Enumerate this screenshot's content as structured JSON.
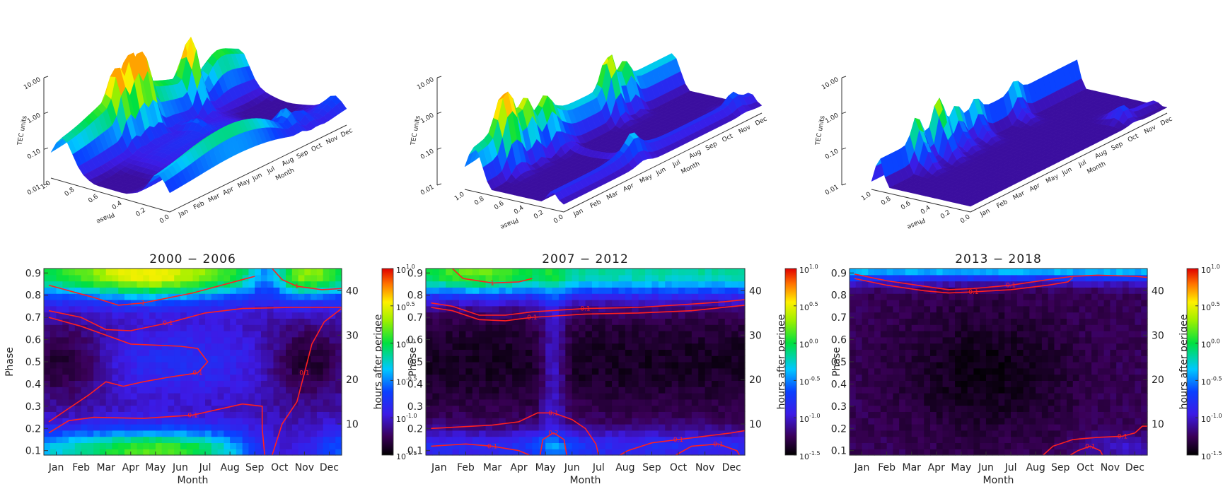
{
  "chart_data": {
    "type": "heatmap",
    "months": [
      "Jan",
      "Feb",
      "Mar",
      "Apr",
      "May",
      "Jun",
      "Jul",
      "Aug",
      "Sep",
      "Oct",
      "Nov",
      "Dec"
    ],
    "phase_ticks": [
      "0.1",
      "0.2",
      "0.3",
      "0.4",
      "0.5",
      "0.6",
      "0.7",
      "0.8",
      "0.9"
    ],
    "hour_ticks": [
      "10",
      "20",
      "30",
      "40"
    ],
    "colorbar_ticks": [
      {
        "base": "10",
        "exp": "1.0"
      },
      {
        "base": "10",
        "exp": "0.5"
      },
      {
        "base": "10",
        "exp": "0.0"
      },
      {
        "base": "10",
        "exp": "-0.5"
      },
      {
        "base": "10",
        "exp": "-1.0"
      },
      {
        "base": "10",
        "exp": "-1.5"
      }
    ],
    "surface_z_ticks": [
      "0.01",
      "0.10",
      "1.00",
      "10.00"
    ],
    "surface_phase_ticks": [
      "0.0",
      "0.2",
      "0.4",
      "0.6",
      "0.8",
      "1.0"
    ],
    "xlabel": "Month",
    "ylabel": "Phase",
    "y2label": "hours after perigee",
    "surface_zlabel": "TEC units",
    "surface_phase_label": "Phase",
    "ranges": {
      "phase": [
        0.08,
        0.92
      ],
      "hours": [
        3,
        45
      ],
      "log_value": [
        -1.5,
        1.0
      ]
    },
    "panels": [
      {
        "title": "2000 − 2006",
        "contours": [
          {
            "label": "1",
            "path": [
              [
                0.2,
                0.845
              ],
              [
                2.0,
                0.79
              ],
              [
                3.0,
                0.755
              ],
              [
                4.0,
                0.765
              ],
              [
                6.0,
                0.81
              ],
              [
                8.0,
                0.87
              ],
              [
                8.5,
                0.885
              ]
            ]
          },
          {
            "label": "1",
            "path": [
              [
                9.2,
                0.92
              ],
              [
                9.6,
                0.87
              ],
              [
                10.2,
                0.84
              ],
              [
                11.2,
                0.825
              ],
              [
                12.0,
                0.83
              ]
            ]
          },
          {
            "label": "0.1",
            "path": [
              [
                0.2,
                0.73
              ],
              [
                1.5,
                0.7
              ],
              [
                2.5,
                0.645
              ],
              [
                3.5,
                0.64
              ],
              [
                5.0,
                0.675
              ],
              [
                6.5,
                0.72
              ],
              [
                8.0,
                0.74
              ],
              [
                10.0,
                0.745
              ],
              [
                12.0,
                0.745
              ]
            ]
          },
          {
            "label": "0.1",
            "path": [
              [
                0.2,
                0.7
              ],
              [
                1.5,
                0.66
              ],
              [
                2.5,
                0.62
              ],
              [
                3.5,
                0.58
              ],
              [
                4.5,
                0.575
              ],
              [
                5.5,
                0.57
              ],
              [
                6.2,
                0.56
              ],
              [
                6.6,
                0.5
              ],
              [
                6.2,
                0.45
              ],
              [
                5.0,
                0.43
              ],
              [
                4.0,
                0.41
              ],
              [
                3.2,
                0.39
              ],
              [
                2.5,
                0.41
              ],
              [
                1.8,
                0.35
              ],
              [
                1.0,
                0.29
              ],
              [
                0.2,
                0.23
              ]
            ]
          },
          {
            "label": "0.1",
            "path": [
              [
                0.2,
                0.18
              ],
              [
                1.0,
                0.235
              ],
              [
                2.0,
                0.25
              ],
              [
                4.0,
                0.245
              ],
              [
                6.0,
                0.26
              ],
              [
                8.0,
                0.31
              ],
              [
                8.8,
                0.3
              ],
              [
                8.8,
                0.2
              ],
              [
                8.9,
                0.08
              ]
            ]
          },
          {
            "label": "0.1",
            "path": [
              [
                12.0,
                0.74
              ],
              [
                11.3,
                0.68
              ],
              [
                10.8,
                0.58
              ],
              [
                10.5,
                0.45
              ],
              [
                10.2,
                0.32
              ],
              [
                9.6,
                0.22
              ],
              [
                9.2,
                0.08
              ]
            ]
          }
        ],
        "surface_peaks": [
          {
            "m": 3.5,
            "p": 0.85,
            "z": 0.9
          },
          {
            "m": 4.4,
            "p": 0.85,
            "z": 1.1
          },
          {
            "m": 5.2,
            "p": 0.85,
            "z": 1.05
          },
          {
            "m": 8.4,
            "p": 0.85,
            "z": 1.4
          },
          {
            "m": 9.0,
            "p": 0.15,
            "z": 0.5
          },
          {
            "m": 10.0,
            "p": 0.15,
            "z": 0.35
          },
          {
            "m": 6.5,
            "p": 0.6,
            "z": 0.3
          }
        ]
      },
      {
        "title": "2007 − 2012",
        "contours": [
          {
            "label": "1",
            "path": [
              [
                1.0,
                0.92
              ],
              [
                1.4,
                0.875
              ],
              [
                2.5,
                0.855
              ],
              [
                3.5,
                0.86
              ],
              [
                4.0,
                0.875
              ]
            ]
          },
          {
            "label": "0.1",
            "path": [
              [
                0.2,
                0.765
              ],
              [
                1.0,
                0.75
              ],
              [
                2.0,
                0.71
              ],
              [
                3.0,
                0.71
              ],
              [
                4.0,
                0.725
              ],
              [
                6.0,
                0.74
              ],
              [
                8.0,
                0.745
              ],
              [
                10.0,
                0.76
              ],
              [
                11.2,
                0.77
              ],
              [
                12.0,
                0.78
              ]
            ]
          },
          {
            "label": "0.1",
            "path": [
              [
                0.2,
                0.745
              ],
              [
                1.0,
                0.73
              ],
              [
                2.0,
                0.69
              ],
              [
                3.0,
                0.685
              ],
              [
                4.0,
                0.7
              ],
              [
                6.0,
                0.715
              ],
              [
                8.0,
                0.72
              ],
              [
                10.0,
                0.73
              ],
              [
                12.0,
                0.755
              ]
            ]
          },
          {
            "label": "0.1",
            "path": [
              [
                0.2,
                0.2
              ],
              [
                1.0,
                0.205
              ],
              [
                2.5,
                0.215
              ],
              [
                3.5,
                0.23
              ],
              [
                4.2,
                0.27
              ],
              [
                4.8,
                0.27
              ],
              [
                5.5,
                0.24
              ],
              [
                6.0,
                0.2
              ],
              [
                6.4,
                0.13
              ],
              [
                6.5,
                0.08
              ]
            ]
          },
          {
            "label": "0.2",
            "path": [
              [
                4.3,
                0.08
              ],
              [
                4.4,
                0.15
              ],
              [
                4.8,
                0.18
              ],
              [
                5.2,
                0.15
              ],
              [
                5.3,
                0.08
              ]
            ]
          },
          {
            "label": "0.1",
            "path": [
              [
                0.2,
                0.12
              ],
              [
                1.5,
                0.13
              ],
              [
                2.5,
                0.12
              ],
              [
                3.5,
                0.1
              ],
              [
                3.9,
                0.08
              ]
            ]
          },
          {
            "label": "0.1",
            "path": [
              [
                7.3,
                0.08
              ],
              [
                7.6,
                0.1
              ],
              [
                8.5,
                0.135
              ],
              [
                9.5,
                0.15
              ],
              [
                10.5,
                0.165
              ],
              [
                11.5,
                0.18
              ],
              [
                12.0,
                0.19
              ]
            ]
          },
          {
            "label": "0.1",
            "path": [
              [
                9.4,
                0.08
              ],
              [
                10.0,
                0.12
              ],
              [
                11.0,
                0.13
              ],
              [
                11.7,
                0.1
              ],
              [
                11.8,
                0.08
              ]
            ]
          }
        ],
        "surface_peaks": [
          {
            "m": 1.5,
            "p": 0.85,
            "z": 0.85
          },
          {
            "m": 2.0,
            "p": 0.85,
            "z": 0.8
          },
          {
            "m": 3.0,
            "p": 0.85,
            "z": 0.7
          },
          {
            "m": 4.2,
            "p": 0.85,
            "z": 0.6
          },
          {
            "m": 8.0,
            "p": 0.85,
            "z": 1.05
          },
          {
            "m": 9.0,
            "p": 0.85,
            "z": 0.6
          },
          {
            "m": 5.0,
            "p": 0.15,
            "z": 0.2
          },
          {
            "m": 11.0,
            "p": 0.15,
            "z": 0.25
          }
        ]
      },
      {
        "title": "2013 − 2018",
        "contours": [
          {
            "label": "0.1",
            "path": [
              [
                0.2,
                0.895
              ],
              [
                1.5,
                0.865
              ],
              [
                3.0,
                0.84
              ],
              [
                4.0,
                0.825
              ],
              [
                5.0,
                0.83
              ],
              [
                6.5,
                0.845
              ],
              [
                8.0,
                0.87
              ],
              [
                9.0,
                0.885
              ],
              [
                10.0,
                0.89
              ],
              [
                11.5,
                0.885
              ],
              [
                12.0,
                0.88
              ]
            ]
          },
          {
            "label": "0.1",
            "path": [
              [
                0.2,
                0.875
              ],
              [
                1.5,
                0.845
              ],
              [
                3.0,
                0.82
              ],
              [
                4.0,
                0.81
              ],
              [
                5.0,
                0.815
              ],
              [
                6.5,
                0.825
              ],
              [
                8.0,
                0.845
              ],
              [
                8.8,
                0.86
              ],
              [
                9.0,
                0.88
              ]
            ]
          },
          {
            "label": "0.1",
            "path": [
              [
                7.8,
                0.08
              ],
              [
                8.2,
                0.12
              ],
              [
                9.0,
                0.15
              ],
              [
                10.0,
                0.16
              ],
              [
                11.0,
                0.165
              ],
              [
                11.5,
                0.18
              ],
              [
                11.8,
                0.21
              ],
              [
                12.0,
                0.21
              ]
            ]
          },
          {
            "label": "0.1",
            "path": [
              [
                8.9,
                0.08
              ],
              [
                9.2,
                0.1
              ],
              [
                9.7,
                0.12
              ],
              [
                10.1,
                0.1
              ],
              [
                10.2,
                0.08
              ]
            ]
          }
        ],
        "surface_peaks": [
          {
            "m": 2.2,
            "p": 0.85,
            "z": 0.9
          },
          {
            "m": 3.5,
            "p": 0.85,
            "z": 1.2
          },
          {
            "m": 4.6,
            "p": 0.85,
            "z": 0.6
          },
          {
            "m": 5.8,
            "p": 0.85,
            "z": 0.5
          },
          {
            "m": 8.2,
            "p": 0.85,
            "z": 0.4
          },
          {
            "m": 10.0,
            "p": 0.15,
            "z": 0.35
          }
        ]
      }
    ]
  }
}
